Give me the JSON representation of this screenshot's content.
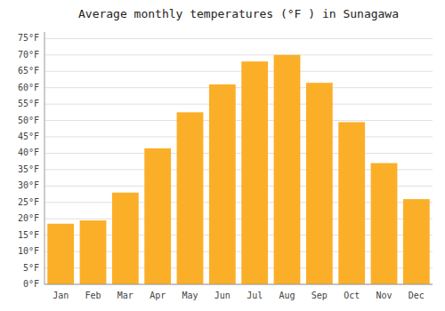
{
  "chart_data": {
    "type": "bar",
    "title": "Average monthly temperatures (°F ) in Sunagawa",
    "categories": [
      "Jan",
      "Feb",
      "Mar",
      "Apr",
      "May",
      "Jun",
      "Jul",
      "Aug",
      "Sep",
      "Oct",
      "Nov",
      "Dec"
    ],
    "values": [
      18.5,
      19.5,
      28.0,
      41.5,
      52.5,
      61.0,
      68.0,
      70.0,
      61.5,
      49.5,
      37.0,
      26.0
    ],
    "color": "#FBAF28",
    "ylim": [
      0,
      77
    ],
    "yticks": [
      {
        "value": 0,
        "label": "0°F"
      },
      {
        "value": 5,
        "label": "5°F"
      },
      {
        "value": 10,
        "label": "10°F"
      },
      {
        "value": 15,
        "label": "15°F"
      },
      {
        "value": 20,
        "label": "20°F"
      },
      {
        "value": 25,
        "label": "25°F"
      },
      {
        "value": 30,
        "label": "30°F"
      },
      {
        "value": 35,
        "label": "35°F"
      },
      {
        "value": 40,
        "label": "40°F"
      },
      {
        "value": 45,
        "label": "45°F"
      },
      {
        "value": 50,
        "label": "50°F"
      },
      {
        "value": 55,
        "label": "55°F"
      },
      {
        "value": 60,
        "label": "60°F"
      },
      {
        "value": 65,
        "label": "65°F"
      },
      {
        "value": 70,
        "label": "70°F"
      },
      {
        "value": 75,
        "label": "75°F"
      }
    ],
    "grid": true
  }
}
